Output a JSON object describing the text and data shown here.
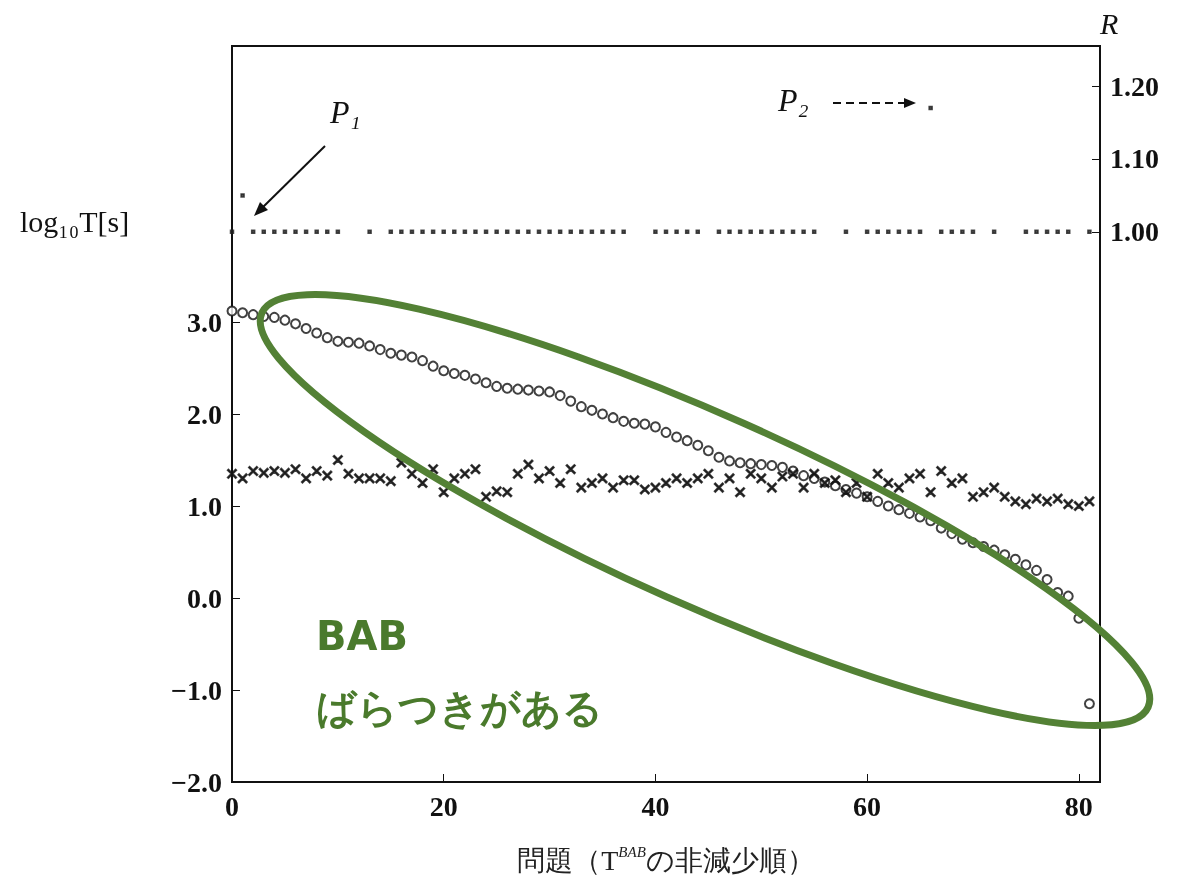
{
  "chart_data": {
    "type": "scatter",
    "xlabel": "問題（T$^{BAB}$の非減少順）",
    "ylabel": "log₁₀T[s]",
    "y2label": "R",
    "x": [
      0,
      1,
      2,
      3,
      4,
      5,
      6,
      7,
      8,
      9,
      10,
      11,
      12,
      13,
      14,
      15,
      16,
      17,
      18,
      19,
      20,
      21,
      22,
      23,
      24,
      25,
      26,
      27,
      28,
      29,
      30,
      31,
      32,
      33,
      34,
      35,
      36,
      37,
      38,
      39,
      40,
      41,
      42,
      43,
      44,
      45,
      46,
      47,
      48,
      49,
      50,
      51,
      52,
      53,
      54,
      55,
      56,
      57,
      58,
      59,
      60,
      61,
      62,
      63,
      64,
      65,
      66,
      67,
      68,
      69,
      70,
      71,
      72,
      73,
      74,
      75,
      76,
      77,
      78,
      79,
      80,
      81
    ],
    "series": [
      {
        "color": "#111111",
        "marker": "circle",
        "values": [
          3.12,
          3.1,
          3.08,
          3.06,
          3.05,
          3.02,
          2.98,
          2.93,
          2.88,
          2.83,
          2.79,
          2.78,
          2.77,
          2.74,
          2.7,
          2.66,
          2.64,
          2.62,
          2.58,
          2.52,
          2.47,
          2.44,
          2.42,
          2.38,
          2.34,
          2.3,
          2.28,
          2.27,
          2.26,
          2.25,
          2.24,
          2.2,
          2.14,
          2.08,
          2.04,
          2.0,
          1.96,
          1.92,
          1.9,
          1.89,
          1.86,
          1.8,
          1.75,
          1.71,
          1.66,
          1.6,
          1.53,
          1.49,
          1.47,
          1.46,
          1.45,
          1.44,
          1.42,
          1.38,
          1.33,
          1.3,
          1.26,
          1.22,
          1.18,
          1.14,
          1.1,
          1.05,
          1.0,
          0.96,
          0.92,
          0.88,
          0.84,
          0.76,
          0.7,
          0.64,
          0.6,
          0.56,
          0.52,
          0.47,
          0.42,
          0.36,
          0.3,
          0.2,
          0.06,
          0.02,
          -0.22,
          -1.15
        ]
      },
      {
        "color": "#111111",
        "marker": "cross",
        "values": [
          1.35,
          1.3,
          1.38,
          1.36,
          1.38,
          1.36,
          1.4,
          1.3,
          1.38,
          1.33,
          1.5,
          1.35,
          1.3,
          1.3,
          1.3,
          1.27,
          1.47,
          1.35,
          1.25,
          1.4,
          1.15,
          1.3,
          1.35,
          1.4,
          1.1,
          1.16,
          1.15,
          1.35,
          1.45,
          1.3,
          1.38,
          1.25,
          1.4,
          1.2,
          1.25,
          1.3,
          1.2,
          1.28,
          1.28,
          1.18,
          1.2,
          1.25,
          1.3,
          1.25,
          1.3,
          1.35,
          1.2,
          1.3,
          1.15,
          1.35,
          1.3,
          1.2,
          1.32,
          1.35,
          1.2,
          1.35,
          1.25,
          1.28,
          1.15,
          1.25,
          1.1,
          1.35,
          1.25,
          1.2,
          1.3,
          1.35,
          1.15,
          1.38,
          1.25,
          1.3,
          1.1,
          1.15,
          1.2,
          1.1,
          1.05,
          1.02,
          1.08,
          1.05,
          1.08,
          1.02,
          1.0,
          1.05
        ]
      },
      {
        "color": "#222222",
        "marker": "square",
        "axis": "y2",
        "values": [
          1.0,
          1.05,
          1.0,
          1.0,
          1.0,
          1.0,
          1.0,
          1.0,
          1.0,
          1.0,
          1.0,
          null,
          null,
          1.0,
          null,
          1.0,
          1.0,
          1.0,
          1.0,
          1.0,
          1.0,
          1.0,
          1.0,
          1.0,
          1.0,
          1.0,
          1.0,
          1.0,
          1.0,
          1.0,
          1.0,
          1.0,
          1.0,
          1.0,
          1.0,
          1.0,
          1.0,
          1.0,
          null,
          null,
          1.0,
          1.0,
          1.0,
          1.0,
          1.0,
          null,
          1.0,
          1.0,
          1.0,
          1.0,
          1.0,
          1.0,
          1.0,
          1.0,
          1.0,
          1.0,
          null,
          null,
          1.0,
          null,
          1.0,
          1.0,
          1.0,
          1.0,
          1.0,
          1.0,
          1.17,
          1.0,
          1.0,
          1.0,
          1.0,
          null,
          1.0,
          null,
          null,
          1.0,
          1.0,
          1.0,
          1.0,
          1.0,
          null,
          1.0
        ]
      }
    ],
    "xlim": [
      0,
      82
    ],
    "xticks": [
      0,
      20,
      40,
      60,
      80
    ],
    "ylim": [
      -2,
      6
    ],
    "yticks": [
      {
        "value": -2,
        "label": "−2.0"
      },
      {
        "value": -1,
        "label": "−1.0"
      },
      {
        "value": 0,
        "label": "0.0"
      },
      {
        "value": 1,
        "label": "1.0"
      },
      {
        "value": 2,
        "label": "2.0"
      },
      {
        "value": 3,
        "label": "3.0"
      }
    ],
    "y2lim": [
      0.245,
      1.255
    ],
    "y2ticks": [
      {
        "value": 1.0,
        "label": "1.00"
      },
      {
        "value": 1.1,
        "label": "1.10"
      },
      {
        "value": 1.2,
        "label": "1.20"
      }
    ],
    "grid": false,
    "annotations": [
      "P₁",
      "P₂",
      "BAB\nばらつきがある"
    ]
  }
}
